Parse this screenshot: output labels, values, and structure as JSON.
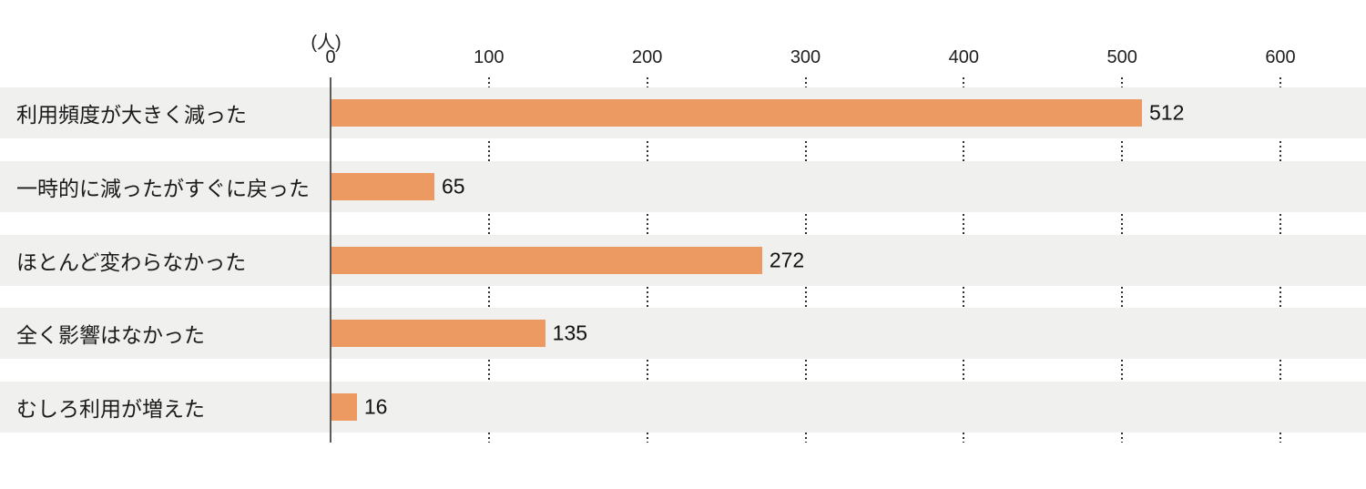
{
  "chart_data": {
    "type": "bar",
    "orientation": "horizontal",
    "title": "",
    "unit_label": "(人)",
    "categories": [
      "利用頻度が大きく減った",
      "一時的に減ったがすぐに戻った",
      "ほとんど変わらなかった",
      "全く影響はなかった",
      "むしろ利用が増えた"
    ],
    "values": [
      512,
      65,
      272,
      135,
      16
    ],
    "xlim": [
      0,
      600
    ],
    "xticks": [
      0,
      100,
      200,
      300,
      400,
      500,
      600
    ],
    "grid": "dotted-vertical-in-row-gaps",
    "legend": "none",
    "colors": {
      "bar": "#EC9A61",
      "band_background": "#F0F0EF",
      "axis_line": "#5A5A5A",
      "grid_dots": "#2E2E2E",
      "text": "#1A1A1A"
    }
  }
}
